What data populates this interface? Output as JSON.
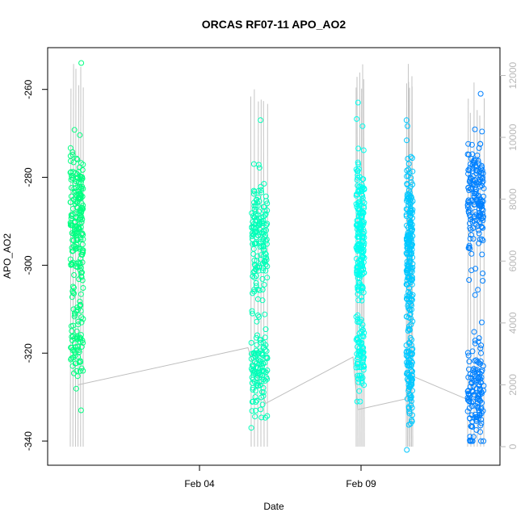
{
  "chart_data": {
    "type": "scatter",
    "title": "ORCAS RF07-11 APO_AO2",
    "xlabel": "Date",
    "ylabel": "APO_AO2",
    "x_ticks": [
      {
        "label": "Feb 04",
        "day": 4
      },
      {
        "label": "Feb 09",
        "day": 9
      }
    ],
    "xlim": [
      -0.7,
      13.3
    ],
    "ylim": [
      -345.5,
      -250.5
    ],
    "y_ticks": [
      -260,
      -280,
      -300,
      -320,
      -340
    ],
    "y2_label": "",
    "y2lim": [
      -600,
      12900
    ],
    "y2_ticks": [
      0,
      2000,
      4000,
      6000,
      8000,
      10000,
      12000
    ],
    "series": [
      {
        "color": "#00FF80",
        "x_range": [
          0.0,
          0.4
        ],
        "clusters": [
          {
            "y_center": -289,
            "spread": 9,
            "weight": 0.78
          },
          {
            "y_center": -318,
            "spread": 5,
            "weight": 0.22
          }
        ],
        "y_minmax": [
          -333,
          -254
        ]
      },
      {
        "color": "#00FFB8",
        "x_range": [
          5.6,
          6.1
        ],
        "clusters": [
          {
            "y_center": -295,
            "spread": 9,
            "weight": 0.6
          },
          {
            "y_center": -324,
            "spread": 5,
            "weight": 0.4
          }
        ],
        "y_minmax": [
          -337,
          -267
        ]
      },
      {
        "color": "#00FFEE",
        "x_range": [
          8.85,
          9.1
        ],
        "clusters": [
          {
            "y_center": -293,
            "spread": 10,
            "weight": 0.75
          },
          {
            "y_center": -320,
            "spread": 5,
            "weight": 0.25
          }
        ],
        "y_minmax": [
          -331,
          -263
        ]
      },
      {
        "color": "#00C8FF",
        "x_range": [
          10.4,
          10.6
        ],
        "clusters": [
          {
            "y_center": -295,
            "spread": 11,
            "weight": 0.7
          },
          {
            "y_center": -325,
            "spread": 7,
            "weight": 0.3
          }
        ],
        "y_minmax": [
          -342,
          -267
        ]
      },
      {
        "color": "#0080FF",
        "x_range": [
          12.3,
          12.8
        ],
        "clusters": [
          {
            "y_center": -284,
            "spread": 9,
            "weight": 0.55
          },
          {
            "y_center": -328,
            "spread": 6,
            "weight": 0.45
          }
        ],
        "y_minmax": [
          -340,
          -261
        ]
      }
    ],
    "altitude_series": {
      "color": "#BEBEBE",
      "flights": [
        {
          "x_range": [
            0.0,
            0.4
          ],
          "peak": 12700
        },
        {
          "x_range": [
            5.6,
            6.1
          ],
          "peak": 12000
        },
        {
          "x_range": [
            8.85,
            9.1
          ],
          "peak": 12400
        },
        {
          "x_range": [
            10.4,
            10.6
          ],
          "peak": 12600
        },
        {
          "x_range": [
            12.3,
            12.8
          ],
          "peak": 11900
        }
      ],
      "connectors": [
        [
          0.25,
          2000
        ],
        [
          5.5,
          3200
        ],
        [
          6.05,
          1400
        ],
        [
          8.75,
          2900
        ],
        [
          8.9,
          1200
        ],
        [
          10.4,
          1550
        ],
        [
          10.55,
          2300
        ],
        [
          12.35,
          1500
        ]
      ]
    },
    "grid": false,
    "legend": "none"
  }
}
